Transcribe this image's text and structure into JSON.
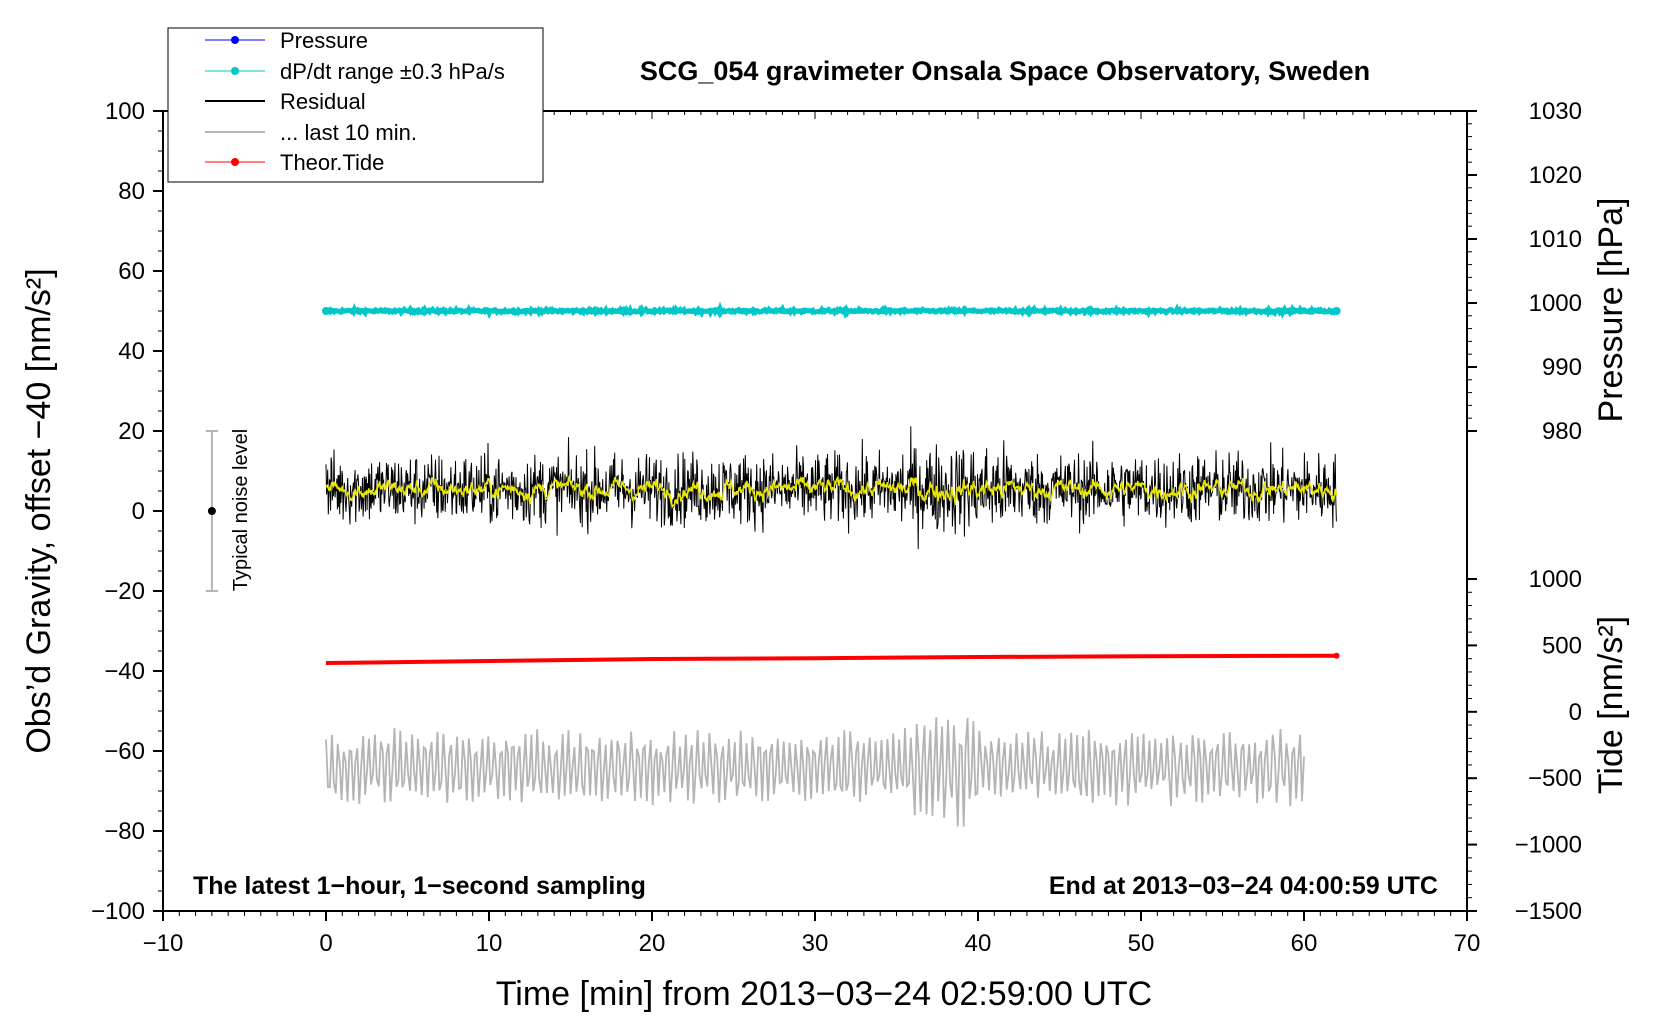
{
  "chart_data": {
    "type": "line",
    "title": "SCG_054 gravimeter Onsala Space Observatory, Sweden",
    "xlabel": "Time [min] from 2013−03−24 02:59:00 UTC",
    "ylabel": "Obs’d Gravity, offset −40 [nm/s²]",
    "xlim": [
      -10,
      70
    ],
    "ylim": [
      -100,
      100
    ],
    "x_ticks": [
      -10,
      0,
      10,
      20,
      30,
      40,
      50,
      60,
      70
    ],
    "x_tick_labels": [
      "−10",
      "0",
      "10",
      "20",
      "30",
      "40",
      "50",
      "60",
      "70"
    ],
    "y_ticks": [
      -100,
      -80,
      -60,
      -40,
      -20,
      0,
      20,
      40,
      60,
      80,
      100
    ],
    "y_tick_labels": [
      "−100",
      "−80",
      "−60",
      "−40",
      "−20",
      "0",
      "20",
      "40",
      "60",
      "80",
      "100"
    ],
    "right_pressure_axis": {
      "label": "Pressure [hPa]",
      "ticks": [
        980,
        990,
        1000,
        1010,
        1020,
        1030
      ],
      "tick_labels": [
        "980",
        "990",
        "1000",
        "1010",
        "1020",
        "1030"
      ],
      "range": [
        970,
        1030
      ]
    },
    "right_tide_axis": {
      "label": "Tide [nm/s²]",
      "ticks": [
        -1500,
        -1000,
        -500,
        0,
        500,
        1000
      ],
      "tick_labels": [
        "−1500",
        "−1000",
        "−500",
        "0",
        "500",
        "1000"
      ],
      "range": [
        -1500,
        1000
      ]
    },
    "corner_notes": {
      "left": "The latest 1−hour, 1−second sampling",
      "right": "End at 2013−03−24 04:00:59 UTC"
    },
    "noise_bar": {
      "label": "Typical noise level",
      "x": -7,
      "center": 0,
      "low": -20,
      "high": 20
    },
    "legend": {
      "placement": "top-left, outside plot",
      "entries": [
        "Pressure",
        "dP/dt range ±0.3 hPa/s",
        "Residual",
        "... last 10 min.",
        "Theor.Tide"
      ]
    },
    "colors": {
      "pressure": "#0000ff",
      "dpdt": "#00c8c8",
      "residual": "#000000",
      "residual_smooth": "#e6e600",
      "last10": "#b4b4b4",
      "tide": "#ff0000",
      "noise_bar": "#b4b4b4"
    },
    "series": [
      {
        "name": "dP/dt range ±0.3 hPa/s",
        "axis": "left",
        "x_range": [
          0,
          62
        ],
        "level": 50,
        "jitter": 0.6
      },
      {
        "name": "Residual",
        "axis": "left",
        "x_range": [
          0,
          62
        ],
        "mean": 5.5,
        "typical_min": -13,
        "typical_max": 27
      },
      {
        "name": "Theor.Tide",
        "axis": "left",
        "x": [
          0,
          10,
          20,
          30,
          40,
          50,
          62
        ],
        "values": [
          -38,
          -37.5,
          -37,
          -36.8,
          -36.5,
          -36.3,
          -36.2
        ]
      },
      {
        "name": "... last 10 min.",
        "axis": "left",
        "x_range": [
          0,
          60
        ],
        "mean": -64,
        "typical_min": -81,
        "typical_max": -47
      }
    ]
  }
}
